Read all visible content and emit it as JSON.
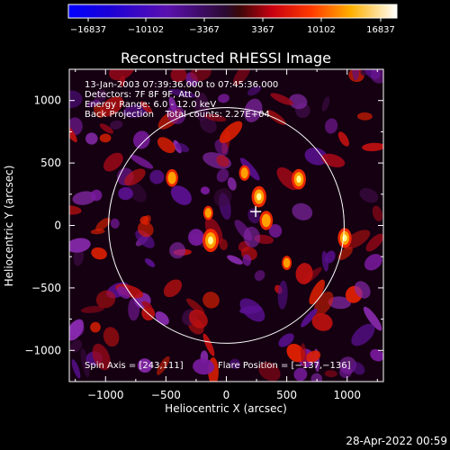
{
  "colorbar": {
    "ticks": [
      "-16837",
      "-10102",
      "-3367",
      "3367",
      "10102",
      "16837"
    ]
  },
  "footer": {
    "timestamp": "28-Apr-2022 00:59"
  },
  "colors": {
    "background": "#000000",
    "foreground": "#ffffff"
  },
  "chart_data": {
    "type": "heatmap",
    "title": "Reconstructed RHESSI Image",
    "xlabel": "Heliocentric X (arcsec)",
    "ylabel": "Heliocentric Y (arcsec)",
    "xlim": [
      -1300,
      1300
    ],
    "ylim": [
      -1250,
      1250
    ],
    "xticks": [
      -1000,
      -500,
      0,
      500,
      1000
    ],
    "yticks": [
      -1000,
      -500,
      0,
      500,
      1000
    ],
    "xtick_labels": [
      "−1000",
      "−500",
      "0",
      "500",
      "1000"
    ],
    "ytick_labels": [
      "−1000",
      "−500",
      "0",
      "500",
      "1000"
    ],
    "colorbar_range": [
      -16837,
      16837
    ],
    "annotations": [
      "13-Jan-2003 07:39:36.000 to 07:45:36.000",
      "Detectors: 7F 8F 9F, Att 0",
      "Energy Range: 6.0 - 12.0 keV",
      "Back Projection    Total counts: 2.27E+04"
    ],
    "spin_axis": "Spin Axis = [243,111]",
    "flare_position_label": "Flare Position = [−137,−136]",
    "solar_disk": {
      "center": [
        0,
        0
      ],
      "radius": 975
    },
    "cross_marker": [
      243,
      111
    ],
    "bright_sources": [
      {
        "x": -130,
        "y": -120,
        "level": 1.0
      },
      {
        "x": 270,
        "y": 230,
        "level": 0.85
      },
      {
        "x": 330,
        "y": 40,
        "level": 0.7
      },
      {
        "x": 600,
        "y": 370,
        "level": 0.8
      },
      {
        "x": 980,
        "y": -100,
        "level": 0.75
      },
      {
        "x": -450,
        "y": 380,
        "level": 0.6
      },
      {
        "x": 150,
        "y": 420,
        "level": 0.45
      },
      {
        "x": -150,
        "y": 100,
        "level": 0.35
      },
      {
        "x": 500,
        "y": -300,
        "level": 0.35
      }
    ]
  }
}
